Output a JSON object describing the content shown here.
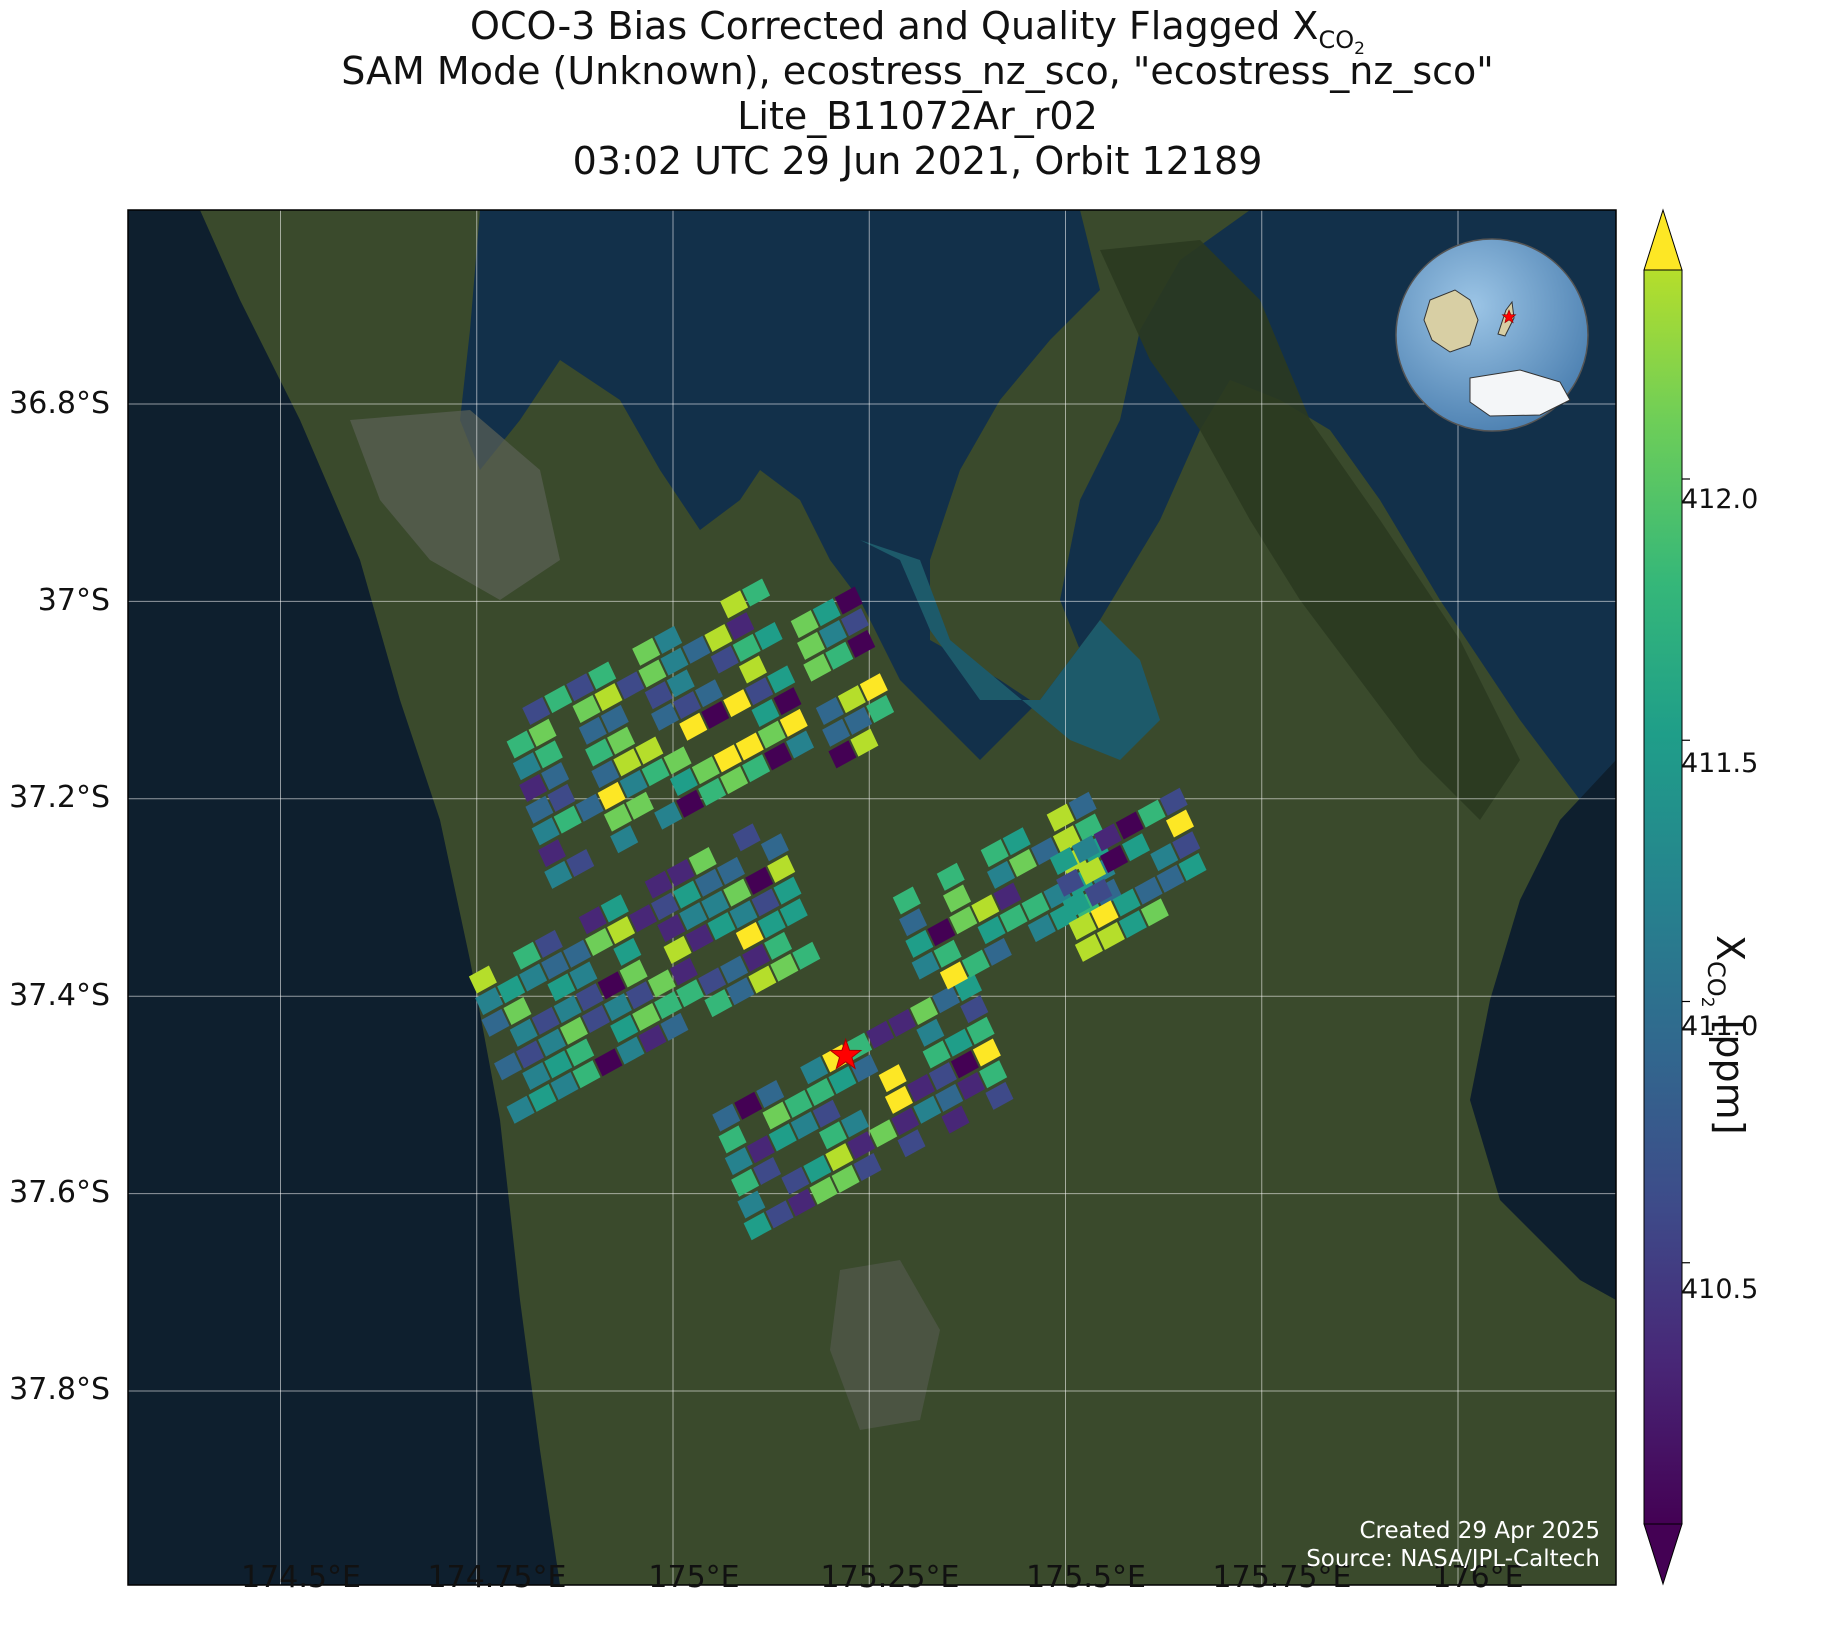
{
  "title": {
    "line1_prefix": "OCO-3 Bias Corrected and Quality Flagged X",
    "line1_sub": "CO",
    "line1_subsub": "2",
    "line2": "SAM Mode (Unknown), ecostress_nz_sco, \"ecostress_nz_sco\"",
    "line3": "Lite_B11072Ar_r02",
    "line4": "03:02 UTC 29 Jun 2021, Orbit 12189"
  },
  "map": {
    "lat_ticks": [
      {
        "value": -36.8,
        "label": "36.8°S"
      },
      {
        "value": -37.0,
        "label": "37°S"
      },
      {
        "value": -37.2,
        "label": "37.2°S"
      },
      {
        "value": -37.4,
        "label": "37.4°S"
      },
      {
        "value": -37.6,
        "label": "37.6°S"
      },
      {
        "value": -37.8,
        "label": "37.8°S"
      }
    ],
    "lon_ticks": [
      {
        "value": 174.5,
        "label": "174.5°E"
      },
      {
        "value": 174.75,
        "label": "174.75°E"
      },
      {
        "value": 175.0,
        "label": "175°E"
      },
      {
        "value": 175.25,
        "label": "175.25°E"
      },
      {
        "value": 175.5,
        "label": "175.5°E"
      },
      {
        "value": 175.75,
        "label": "175.75°E"
      },
      {
        "value": 176.0,
        "label": "176°E"
      }
    ],
    "lon_range": [
      174.3,
      176.2
    ],
    "lat_range": [
      -37.8,
      -36.8
    ],
    "target_marker": {
      "lon": 175.22,
      "lat": -37.46,
      "color": "#ff0000",
      "shape": "star"
    },
    "globe_inset": {
      "position": "top-right",
      "marker": "star"
    },
    "credit_line1": "Created 29 Apr 2025",
    "credit_line2": "Source: NASA/JPL-Caltech"
  },
  "colorbar": {
    "colormap": "viridis",
    "min": 410.0,
    "max": 412.4,
    "ticks": [
      {
        "value": 412.0,
        "label": "412.0"
      },
      {
        "value": 411.5,
        "label": "411.5"
      },
      {
        "value": 411.0,
        "label": "411.0"
      },
      {
        "value": 410.5,
        "label": "410.5"
      }
    ],
    "label_prefix": "X",
    "label_sub": "CO",
    "label_subsub": "2",
    "label_suffix": " [ppm]",
    "extend": "both"
  },
  "colors": {
    "ocean": "#0e1f2e",
    "land": "#3a4a2c",
    "target_star": "#ff0000"
  }
}
